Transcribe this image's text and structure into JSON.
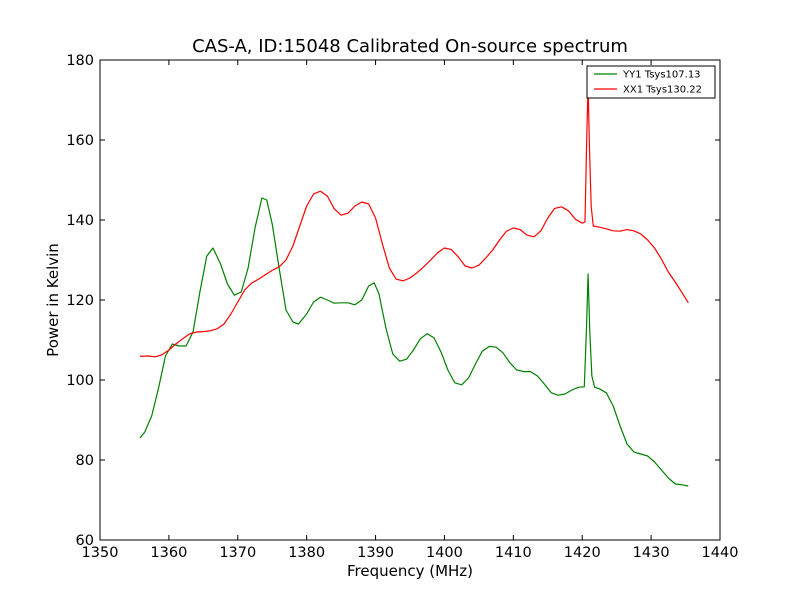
{
  "chart_data": {
    "type": "line",
    "title": "CAS-A, ID:15048 Calibrated On-source spectrum",
    "xlabel": "Frequency (MHz)",
    "ylabel": "Power in Kelvin",
    "xlim": [
      1350,
      1440
    ],
    "ylim": [
      60,
      180
    ],
    "xticks": [
      1350,
      1360,
      1370,
      1380,
      1390,
      1400,
      1410,
      1420,
      1430,
      1440
    ],
    "yticks": [
      60,
      80,
      100,
      120,
      140,
      160,
      180
    ],
    "grid": false,
    "legend_position": "top-right",
    "series": [
      {
        "name": "YY1 Tsys107.13",
        "color": "#008000",
        "points": [
          [
            1355.8,
            85.5
          ],
          [
            1356.5,
            87
          ],
          [
            1357.5,
            91
          ],
          [
            1358.5,
            98
          ],
          [
            1359.5,
            106
          ],
          [
            1360.5,
            109
          ],
          [
            1361.5,
            108.5
          ],
          [
            1362.5,
            108.5
          ],
          [
            1363.5,
            112
          ],
          [
            1364.5,
            122
          ],
          [
            1365.5,
            131
          ],
          [
            1366.4,
            133
          ],
          [
            1367.5,
            129
          ],
          [
            1368.5,
            124
          ],
          [
            1369.5,
            121.2
          ],
          [
            1370.5,
            122
          ],
          [
            1371.5,
            128
          ],
          [
            1372.5,
            138
          ],
          [
            1373.5,
            145.5
          ],
          [
            1374.2,
            145
          ],
          [
            1375,
            139
          ],
          [
            1376,
            128
          ],
          [
            1377,
            117.5
          ],
          [
            1378,
            114.5
          ],
          [
            1378.8,
            114
          ],
          [
            1380,
            116.5
          ],
          [
            1381,
            119.5
          ],
          [
            1382,
            120.7
          ],
          [
            1383,
            120
          ],
          [
            1384,
            119.2
          ],
          [
            1385,
            119.3
          ],
          [
            1386,
            119.3
          ],
          [
            1387,
            118.8
          ],
          [
            1388,
            120
          ],
          [
            1389,
            123.5
          ],
          [
            1389.8,
            124.3
          ],
          [
            1390.5,
            121.5
          ],
          [
            1391.5,
            113
          ],
          [
            1392.5,
            106.5
          ],
          [
            1393.5,
            104.7
          ],
          [
            1394.5,
            105.2
          ],
          [
            1395.5,
            107.5
          ],
          [
            1396.5,
            110.3
          ],
          [
            1397.5,
            111.6
          ],
          [
            1398.5,
            110.5
          ],
          [
            1399.5,
            107
          ],
          [
            1400.5,
            102.5
          ],
          [
            1401.5,
            99.3
          ],
          [
            1402.5,
            98.8
          ],
          [
            1403.5,
            100.5
          ],
          [
            1404.5,
            104
          ],
          [
            1405.5,
            107.2
          ],
          [
            1406.5,
            108.4
          ],
          [
            1407.5,
            108.2
          ],
          [
            1408.5,
            106.8
          ],
          [
            1409.5,
            104.3
          ],
          [
            1410.5,
            102.5
          ],
          [
            1411.5,
            102.1
          ],
          [
            1412.5,
            102.1
          ],
          [
            1413.5,
            101
          ],
          [
            1414.5,
            99
          ],
          [
            1415.5,
            96.8
          ],
          [
            1416.5,
            96.2
          ],
          [
            1417.5,
            96.5
          ],
          [
            1418.5,
            97.5
          ],
          [
            1419.5,
            98.2
          ],
          [
            1420.3,
            98.3
          ],
          [
            1420.6,
            112
          ],
          [
            1420.85,
            126.5
          ],
          [
            1421.1,
            112
          ],
          [
            1421.4,
            101
          ],
          [
            1421.8,
            98.2
          ],
          [
            1422.5,
            97.8
          ],
          [
            1423.5,
            96.8
          ],
          [
            1424.5,
            93.5
          ],
          [
            1425.5,
            88.5
          ],
          [
            1426.5,
            84
          ],
          [
            1427.5,
            82
          ],
          [
            1428.5,
            81.5
          ],
          [
            1429.5,
            81
          ],
          [
            1430.5,
            79.5
          ],
          [
            1431.5,
            77.5
          ],
          [
            1432.5,
            75.5
          ],
          [
            1433.5,
            74
          ],
          [
            1434.5,
            73.8
          ],
          [
            1435.4,
            73.5
          ]
        ]
      },
      {
        "name": "XX1 Tsys130.22",
        "color": "#ff0000",
        "points": [
          [
            1355.8,
            105.9
          ],
          [
            1357,
            106
          ],
          [
            1358,
            105.8
          ],
          [
            1359,
            106.3
          ],
          [
            1360,
            107.5
          ],
          [
            1361,
            109
          ],
          [
            1362,
            110.3
          ],
          [
            1363,
            111.5
          ],
          [
            1364,
            112
          ],
          [
            1365,
            112.1
          ],
          [
            1366,
            112.3
          ],
          [
            1367,
            112.8
          ],
          [
            1368,
            114
          ],
          [
            1369,
            116.5
          ],
          [
            1370,
            119.5
          ],
          [
            1371,
            122.5
          ],
          [
            1372,
            124.2
          ],
          [
            1373,
            125.2
          ],
          [
            1374,
            126.3
          ],
          [
            1375,
            127.4
          ],
          [
            1376,
            128.3
          ],
          [
            1377,
            130
          ],
          [
            1378,
            133.5
          ],
          [
            1379,
            138.5
          ],
          [
            1380,
            143.5
          ],
          [
            1381,
            146.5
          ],
          [
            1382,
            147.2
          ],
          [
            1383,
            146
          ],
          [
            1384,
            142.8
          ],
          [
            1385,
            141.2
          ],
          [
            1386,
            141.7
          ],
          [
            1387,
            143.5
          ],
          [
            1388,
            144.5
          ],
          [
            1389,
            144
          ],
          [
            1390,
            140.5
          ],
          [
            1391,
            134
          ],
          [
            1392,
            128
          ],
          [
            1393,
            125.2
          ],
          [
            1394,
            124.8
          ],
          [
            1395,
            125.5
          ],
          [
            1396,
            126.8
          ],
          [
            1397,
            128.3
          ],
          [
            1398,
            130
          ],
          [
            1399,
            131.8
          ],
          [
            1400,
            133
          ],
          [
            1401,
            132.6
          ],
          [
            1402,
            130.8
          ],
          [
            1403,
            128.5
          ],
          [
            1404,
            128
          ],
          [
            1405,
            128.7
          ],
          [
            1406,
            130.5
          ],
          [
            1407,
            132.5
          ],
          [
            1408,
            135
          ],
          [
            1409,
            137.2
          ],
          [
            1410,
            138
          ],
          [
            1411,
            137.6
          ],
          [
            1412,
            136.2
          ],
          [
            1413,
            135.8
          ],
          [
            1414,
            137.3
          ],
          [
            1415,
            140.5
          ],
          [
            1416,
            142.9
          ],
          [
            1417,
            143.3
          ],
          [
            1418,
            142.3
          ],
          [
            1419,
            140.2
          ],
          [
            1420,
            139.2
          ],
          [
            1420.4,
            139.5
          ],
          [
            1420.65,
            160
          ],
          [
            1420.85,
            174
          ],
          [
            1421.05,
            158
          ],
          [
            1421.3,
            143.5
          ],
          [
            1421.6,
            138.5
          ],
          [
            1422.5,
            138.2
          ],
          [
            1423.5,
            137.8
          ],
          [
            1424.5,
            137.3
          ],
          [
            1425.5,
            137.2
          ],
          [
            1426.5,
            137.6
          ],
          [
            1427.5,
            137.3
          ],
          [
            1428.5,
            136.5
          ],
          [
            1429.5,
            135
          ],
          [
            1430.5,
            133
          ],
          [
            1431.5,
            130.2
          ],
          [
            1432.5,
            127
          ],
          [
            1433.5,
            124.5
          ],
          [
            1434.5,
            121.8
          ],
          [
            1435.4,
            119.3
          ]
        ]
      }
    ]
  }
}
